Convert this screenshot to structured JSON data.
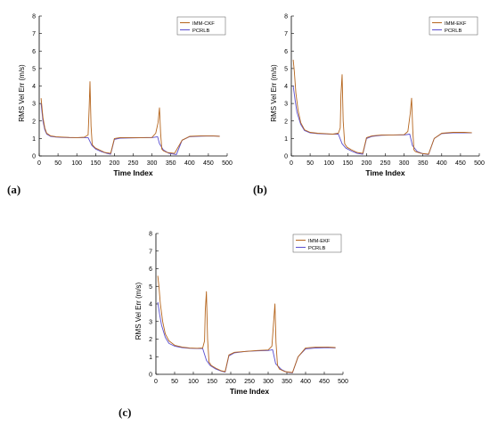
{
  "panel_labels": [
    "(a)",
    "(b)",
    "(c)"
  ],
  "colors": {
    "imm": "#b5651d",
    "pcrlb": "#5a4fcf",
    "axis": "#000000"
  },
  "chart_data": [
    {
      "type": "line",
      "panel": "(a)",
      "title": "",
      "xlabel": "Time Index",
      "ylabel": "RMS Vel Err (m/s)",
      "xlim": [
        0,
        500
      ],
      "ylim": [
        0,
        8
      ],
      "xticks": [
        0,
        50,
        100,
        150,
        200,
        250,
        300,
        350,
        400,
        450,
        500
      ],
      "yticks": [
        0,
        1,
        2,
        3,
        4,
        5,
        6,
        7,
        8
      ],
      "grid": false,
      "legend_position": "top-right",
      "series": [
        {
          "name": "IMM-CKF",
          "color": "#b5651d",
          "x": [
            5,
            10,
            15,
            20,
            30,
            45,
            60,
            80,
            100,
            120,
            130,
            133,
            135,
            138,
            141,
            145,
            150,
            160,
            175,
            190,
            200,
            215,
            240,
            270,
            300,
            310,
            316,
            320,
            323,
            326,
            330,
            340,
            360,
            380,
            400,
            430,
            460,
            480
          ],
          "y": [
            3.3,
            2.2,
            1.6,
            1.3,
            1.15,
            1.1,
            1.08,
            1.06,
            1.05,
            1.07,
            1.2,
            2.8,
            4.25,
            1.7,
            0.65,
            0.55,
            0.45,
            0.35,
            0.2,
            0.15,
            1.0,
            1.05,
            1.05,
            1.05,
            1.06,
            1.3,
            1.9,
            2.75,
            1.3,
            0.4,
            0.3,
            0.2,
            0.15,
            0.9,
            1.12,
            1.15,
            1.15,
            1.12
          ]
        },
        {
          "name": "PCRLB",
          "color": "#5a4fcf",
          "x": [
            5,
            10,
            15,
            20,
            30,
            45,
            60,
            80,
            100,
            120,
            130,
            140,
            150,
            165,
            180,
            190,
            200,
            215,
            240,
            270,
            300,
            315,
            320,
            330,
            345,
            365,
            380,
            400,
            430,
            460,
            480
          ],
          "y": [
            3.0,
            2.0,
            1.5,
            1.25,
            1.12,
            1.08,
            1.06,
            1.05,
            1.05,
            1.05,
            1.05,
            0.6,
            0.4,
            0.25,
            0.15,
            0.1,
            0.95,
            1.02,
            1.03,
            1.04,
            1.05,
            1.1,
            0.7,
            0.35,
            0.15,
            0.08,
            0.9,
            1.1,
            1.13,
            1.14,
            1.13
          ]
        }
      ]
    },
    {
      "type": "line",
      "panel": "(b)",
      "title": "",
      "xlabel": "Time Index",
      "ylabel": "RMS Vel Err (m/s)",
      "xlim": [
        0,
        500
      ],
      "ylim": [
        0,
        8
      ],
      "xticks": [
        0,
        50,
        100,
        150,
        200,
        250,
        300,
        350,
        400,
        450,
        500
      ],
      "yticks": [
        0,
        1,
        2,
        3,
        4,
        5,
        6,
        7,
        8
      ],
      "grid": false,
      "legend_position": "top-right",
      "series": [
        {
          "name": "IMM-EKF",
          "color": "#b5651d",
          "x": [
            5,
            8,
            12,
            18,
            25,
            35,
            50,
            70,
            90,
            110,
            125,
            130,
            132,
            135,
            138,
            142,
            148,
            160,
            175,
            190,
            200,
            215,
            240,
            270,
            300,
            310,
            316,
            320,
            323,
            326,
            330,
            345,
            365,
            380,
            400,
            430,
            460,
            480
          ],
          "y": [
            5.5,
            4.8,
            3.6,
            2.6,
            1.9,
            1.5,
            1.35,
            1.3,
            1.28,
            1.25,
            1.3,
            1.6,
            3.5,
            4.65,
            2.0,
            0.7,
            0.5,
            0.35,
            0.2,
            0.15,
            1.05,
            1.15,
            1.2,
            1.2,
            1.22,
            1.4,
            2.4,
            3.3,
            1.5,
            0.35,
            0.25,
            0.15,
            0.1,
            1.0,
            1.3,
            1.35,
            1.35,
            1.33
          ]
        },
        {
          "name": "PCRLB",
          "color": "#5a4fcf",
          "x": [
            5,
            10,
            15,
            25,
            35,
            50,
            70,
            90,
            110,
            125,
            135,
            145,
            160,
            175,
            190,
            200,
            215,
            240,
            270,
            300,
            315,
            322,
            335,
            350,
            365,
            380,
            400,
            430,
            460,
            480
          ],
          "y": [
            4.0,
            3.2,
            2.5,
            1.8,
            1.45,
            1.32,
            1.28,
            1.26,
            1.25,
            1.25,
            0.7,
            0.45,
            0.28,
            0.15,
            0.1,
            1.0,
            1.12,
            1.18,
            1.2,
            1.2,
            1.25,
            0.6,
            0.25,
            0.12,
            0.08,
            1.0,
            1.28,
            1.32,
            1.33,
            1.32
          ]
        }
      ]
    },
    {
      "type": "line",
      "panel": "(c)",
      "title": "",
      "xlabel": "Time Index",
      "ylabel": "RMS Vel Err (m/s)",
      "xlim": [
        0,
        500
      ],
      "ylim": [
        0,
        8
      ],
      "xticks": [
        0,
        50,
        100,
        150,
        200,
        250,
        300,
        350,
        400,
        450,
        500
      ],
      "yticks": [
        0,
        1,
        2,
        3,
        4,
        5,
        6,
        7,
        8
      ],
      "grid": false,
      "legend_position": "top-right",
      "series": [
        {
          "name": "IMM-EKF",
          "color": "#b5651d",
          "x": [
            5,
            8,
            12,
            18,
            25,
            35,
            50,
            70,
            90,
            110,
            125,
            130,
            132,
            135,
            138,
            142,
            148,
            160,
            175,
            185,
            195,
            210,
            240,
            270,
            300,
            310,
            314,
            318,
            321,
            325,
            330,
            345,
            365,
            380,
            400,
            430,
            460,
            480
          ],
          "y": [
            5.6,
            5.0,
            4.0,
            3.0,
            2.3,
            1.9,
            1.65,
            1.55,
            1.5,
            1.48,
            1.5,
            1.9,
            3.6,
            4.7,
            2.0,
            0.7,
            0.5,
            0.35,
            0.2,
            0.15,
            1.1,
            1.25,
            1.3,
            1.35,
            1.38,
            1.6,
            2.8,
            4.0,
            1.8,
            0.5,
            0.3,
            0.15,
            0.1,
            1.0,
            1.5,
            1.55,
            1.55,
            1.52
          ]
        },
        {
          "name": "PCRLB",
          "color": "#5a4fcf",
          "x": [
            5,
            10,
            15,
            25,
            35,
            50,
            70,
            90,
            110,
            125,
            135,
            145,
            160,
            175,
            185,
            195,
            210,
            240,
            270,
            300,
            312,
            320,
            335,
            350,
            365,
            380,
            400,
            430,
            460,
            480
          ],
          "y": [
            4.1,
            3.4,
            2.8,
            2.1,
            1.75,
            1.6,
            1.52,
            1.48,
            1.47,
            1.47,
            0.8,
            0.5,
            0.3,
            0.18,
            0.12,
            1.05,
            1.22,
            1.3,
            1.33,
            1.35,
            1.4,
            0.6,
            0.28,
            0.12,
            0.08,
            1.0,
            1.45,
            1.5,
            1.52,
            1.5
          ]
        }
      ]
    }
  ]
}
